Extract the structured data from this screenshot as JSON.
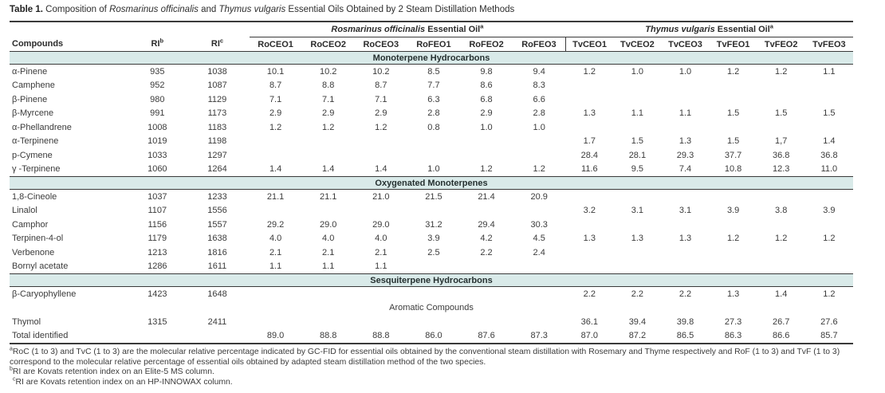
{
  "title": {
    "label": "Table 1.",
    "segments": [
      {
        "text": " Composition of ",
        "italic": false
      },
      {
        "text": "Rosmarinus officinalis",
        "italic": true
      },
      {
        "text": " and ",
        "italic": false
      },
      {
        "text": "Thymus vulgaris",
        "italic": true
      },
      {
        "text": " Essential Oils Obtained by 2 Steam Distillation Methods",
        "italic": false
      }
    ]
  },
  "header": {
    "compounds": "Compounds",
    "ri_b": {
      "text": "RI",
      "sup": "b"
    },
    "ri_c": {
      "text": "RI",
      "sup": "c"
    },
    "groups": [
      {
        "species": "Rosmarinus officinalis",
        "suffix": " Essential Oil",
        "sup": "a"
      },
      {
        "species": "Thymus vulgaris",
        "suffix": " Essential Oil",
        "sup": "a"
      }
    ],
    "columns": [
      "RoCEO1",
      "RoCEO2",
      "RoCEO3",
      "RoFEO1",
      "RoFEO2",
      "RoFEO3",
      "TvCEO1",
      "TvCEO2",
      "TvCEO3",
      "TvFEO1",
      "TvFEO2",
      "TvFEO3"
    ]
  },
  "sections": [
    {
      "header": "Monoterpene Hydrocarbons",
      "shaded": true,
      "rows": [
        {
          "compound": "α-Pinene",
          "ri_b": "935",
          "ri_c": "1038",
          "values": [
            "10.1",
            "10.2",
            "10.2",
            "8.5",
            "9.8",
            "9.4",
            "1.2",
            "1.0",
            "1.0",
            "1.2",
            "1.2",
            "1.1"
          ]
        },
        {
          "compound": "Camphene",
          "ri_b": "952",
          "ri_c": "1087",
          "values": [
            "8.7",
            "8.8",
            "8.7",
            "7.7",
            "8.6",
            "8.3",
            "",
            "",
            "",
            "",
            "",
            ""
          ]
        },
        {
          "compound": "β-Pinene",
          "ri_b": "980",
          "ri_c": "1129",
          "values": [
            "7.1",
            "7.1",
            "7.1",
            "6.3",
            "6.8",
            "6.6",
            "",
            "",
            "",
            "",
            "",
            ""
          ]
        },
        {
          "compound": "β-Myrcene",
          "ri_b": "991",
          "ri_c": "1173",
          "values": [
            "2.9",
            "2.9",
            "2.9",
            "2.8",
            "2.9",
            "2.8",
            "1.3",
            "1.1",
            "1.1",
            "1.5",
            "1.5",
            "1.5"
          ]
        },
        {
          "compound": "α-Phellandrene",
          "ri_b": "1008",
          "ri_c": "1183",
          "values": [
            "1.2",
            "1.2",
            "1.2",
            "0.8",
            "1.0",
            "1.0",
            "",
            "",
            "",
            "",
            "",
            ""
          ]
        },
        {
          "compound": "α-Terpinene",
          "ri_b": "1019",
          "ri_c": "1198",
          "values": [
            "",
            "",
            "",
            "",
            "",
            "",
            "1.7",
            "1.5",
            "1.3",
            "1.5",
            "1,7",
            "1.4"
          ]
        },
        {
          "compound": "p-Cymene",
          "ri_b": "1033",
          "ri_c": "1297",
          "values": [
            "",
            "",
            "",
            "",
            "",
            "",
            "28.4",
            "28.1",
            "29.3",
            "37.7",
            "36.8",
            "36.8"
          ]
        },
        {
          "compound": "γ -Terpinene",
          "ri_b": "1060",
          "ri_c": "1264",
          "values": [
            "1.4",
            "1.4",
            "1.4",
            "1.0",
            "1.2",
            "1.2",
            "11.6",
            "9.5",
            "7.4",
            "10.8",
            "12.3",
            "11.0"
          ]
        }
      ]
    },
    {
      "header": "Oxygenated Monoterpenes",
      "shaded": true,
      "rows": [
        {
          "compound": "1,8-Cineole",
          "ri_b": "1037",
          "ri_c": "1233",
          "values": [
            "21.1",
            "21.1",
            "21.0",
            "21.5",
            "21.4",
            "20.9",
            "",
            "",
            "",
            "",
            "",
            ""
          ]
        },
        {
          "compound": "Linalol",
          "ri_b": "1107",
          "ri_c": "1556",
          "values": [
            "",
            "",
            "",
            "",
            "",
            "",
            "3.2",
            "3.1",
            "3.1",
            "3.9",
            "3.8",
            "3.9"
          ]
        },
        {
          "compound": "Camphor",
          "ri_b": "1156",
          "ri_c": "1557",
          "values": [
            "29.2",
            "29.0",
            "29.0",
            "31.2",
            "29.4",
            "30.3",
            "",
            "",
            "",
            "",
            "",
            ""
          ]
        },
        {
          "compound": "Terpinen-4-ol",
          "ri_b": "1179",
          "ri_c": "1638",
          "values": [
            "4.0",
            "4.0",
            "4.0",
            "3.9",
            "4.2",
            "4.5",
            "1.3",
            "1.3",
            "1.3",
            "1.2",
            "1.2",
            "1.2"
          ]
        },
        {
          "compound": "Verbenone",
          "ri_b": "1213",
          "ri_c": "1816",
          "values": [
            "2.1",
            "2.1",
            "2.1",
            "2.5",
            "2.2",
            "2.4",
            "",
            "",
            "",
            "",
            "",
            ""
          ]
        },
        {
          "compound": "Bornyl acetate",
          "ri_b": "1286",
          "ri_c": "1611",
          "values": [
            "1.1",
            "1.1",
            "1.1",
            "",
            "",
            "",
            "",
            "",
            "",
            "",
            "",
            ""
          ]
        }
      ]
    },
    {
      "header": "Sesquiterpene Hydrocarbons",
      "shaded": true,
      "rows": [
        {
          "compound": "β-Caryophyllene",
          "ri_b": "1423",
          "ri_c": "1648",
          "values": [
            "",
            "",
            "",
            "",
            "",
            "",
            "2.2",
            "2.2",
            "2.2",
            "1.3",
            "1.4",
            "1.2"
          ]
        }
      ]
    },
    {
      "header": "Aromatic Compounds",
      "shaded": false,
      "rows": [
        {
          "compound": "Thymol",
          "ri_b": "1315",
          "ri_c": "2411",
          "values": [
            "",
            "",
            "",
            "",
            "",
            "",
            "36.1",
            "39.4",
            "39.8",
            "27.3",
            "26.7",
            "27.6"
          ]
        }
      ]
    }
  ],
  "total_row": {
    "label": "Total identified",
    "ri_b": "",
    "ri_c": "",
    "values": [
      "89.0",
      "88.8",
      "88.8",
      "86.0",
      "87.6",
      "87.3",
      "87.0",
      "87.2",
      "86.5",
      "86.3",
      "86.6",
      "85.7"
    ]
  },
  "footnotes": [
    {
      "sup": "a",
      "text": "RoC (1 to 3) and TvC (1 to 3) are the molecular relative percentage indicated by GC-FID for essential oils obtained by the conventional steam distillation with Rosemary and Thyme respectively and RoF (1 to 3) and TvF (1 to 3) correspond to the molecular relative percentage of essential oils obtained by adapted steam distillation method of the two species."
    },
    {
      "sup": "b",
      "text": "RI are Kovats retention index on an Elite-5 MS column."
    },
    {
      "sup": "c",
      "text": "RI are Kovats retention index on an HP-INNOWAX column."
    }
  ],
  "colors": {
    "band": "#d9eae9",
    "rule": "#3a3a3a",
    "text": "#3b3b3b"
  }
}
